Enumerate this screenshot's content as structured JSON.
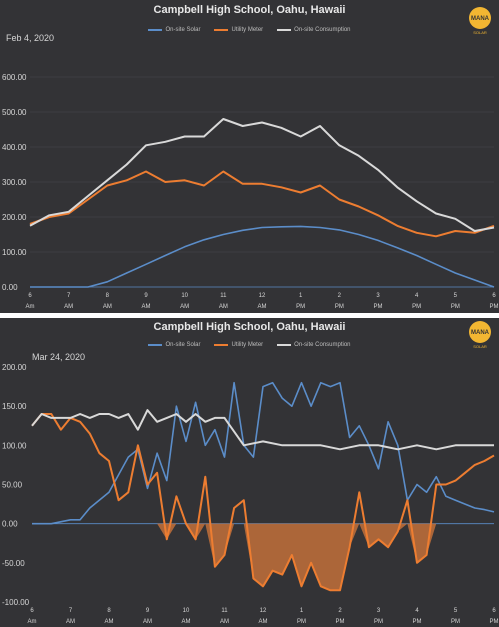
{
  "colors": {
    "background": "#333336",
    "solar": "#5b8dc9",
    "meter": "#ed7d31",
    "consumption": "#d9d9d9",
    "fill": "#c2703a",
    "grid": "#4a4a4d",
    "text": "#d6d6d6",
    "logo": "#f2b632"
  },
  "charts": [
    {
      "title": "Campbell High School, Oahu, Hawaii",
      "date_label": "Feb 4, 2020",
      "legend": [
        "On-site Solar",
        "Utility Meter",
        "On-site Consumption"
      ],
      "logo_text": "MANA",
      "logo_subtext": "SOLAR"
    },
    {
      "title": "Campbell High School, Oahu, Hawaii",
      "date_label": "Mar 24, 2020",
      "legend": [
        "On-site Solar",
        "Utility Meter",
        "On-site Consumption"
      ],
      "logo_text": "MANA",
      "logo_subtext": "SOLAR"
    }
  ],
  "chart_data": [
    {
      "type": "line",
      "title": "Campbell High School, Oahu, Hawaii",
      "legend_position": "top",
      "ylim": [
        0,
        600
      ],
      "xlim": [
        6,
        18
      ],
      "y_ticks": [
        0,
        100,
        200,
        300,
        400,
        500,
        600
      ],
      "y_tick_labels": [
        "0.00",
        "100.00",
        "200.00",
        "300.00",
        "400.00",
        "500.00",
        "600.00"
      ],
      "x_ticks": [
        6,
        7,
        8,
        9,
        10,
        11,
        12,
        13,
        14,
        15,
        16,
        17,
        18
      ],
      "x_tick_labels": [
        [
          "6",
          "Am"
        ],
        [
          "7",
          "AM"
        ],
        [
          "8",
          "AM"
        ],
        [
          "9",
          "AM"
        ],
        [
          "10",
          "AM"
        ],
        [
          "11",
          "AM"
        ],
        [
          "12",
          "AM"
        ],
        [
          "1",
          "PM"
        ],
        [
          "2",
          "PM"
        ],
        [
          "3",
          "PM"
        ],
        [
          "4",
          "PM"
        ],
        [
          "5",
          "PM"
        ],
        [
          "6",
          "PM"
        ]
      ],
      "grid": true,
      "fill_negative": false,
      "series": [
        {
          "name": "On-site Solar",
          "x": [
            6,
            7,
            7.5,
            8,
            8.5,
            9,
            9.5,
            10,
            10.5,
            11,
            11.5,
            12,
            12.5,
            13,
            13.5,
            14,
            14.5,
            15,
            15.5,
            16,
            16.5,
            17,
            17.5,
            18
          ],
          "y": [
            0,
            0,
            0,
            15,
            40,
            65,
            90,
            115,
            135,
            150,
            162,
            170,
            172,
            173,
            170,
            163,
            150,
            133,
            112,
            90,
            65,
            40,
            20,
            0
          ]
        },
        {
          "name": "Utility Meter",
          "x": [
            6,
            6.5,
            7,
            7.5,
            8,
            8.5,
            9,
            9.5,
            10,
            10.5,
            11,
            11.5,
            12,
            12.5,
            13,
            13.5,
            14,
            14.5,
            15,
            15.5,
            16,
            16.5,
            17,
            17.5,
            18
          ],
          "y": [
            180,
            200,
            210,
            250,
            290,
            305,
            330,
            300,
            305,
            290,
            330,
            295,
            295,
            285,
            270,
            290,
            250,
            230,
            205,
            175,
            155,
            145,
            160,
            155,
            175
          ]
        },
        {
          "name": "On-site Consumption",
          "x": [
            6,
            6.5,
            7,
            7.5,
            8,
            8.5,
            9,
            9.5,
            10,
            10.5,
            11,
            11.5,
            12,
            12.5,
            13,
            13.5,
            14,
            14.5,
            15,
            15.5,
            16,
            16.5,
            17,
            17.5,
            18
          ],
          "y": [
            175,
            205,
            215,
            260,
            305,
            350,
            405,
            415,
            430,
            430,
            480,
            460,
            470,
            455,
            430,
            460,
            405,
            375,
            335,
            285,
            245,
            210,
            195,
            160,
            170
          ]
        }
      ]
    },
    {
      "type": "line",
      "title": "Campbell High School, Oahu, Hawaii",
      "legend_position": "top",
      "ylim": [
        -100,
        200
      ],
      "xlim": [
        6,
        18
      ],
      "y_ticks": [
        -100,
        -50,
        0,
        50,
        100,
        150,
        200
      ],
      "y_tick_labels": [
        "-100.00",
        "-50.00",
        "0.00",
        "50.00",
        "100.00",
        "150.00",
        "200.00"
      ],
      "x_ticks": [
        6,
        7,
        8,
        9,
        10,
        11,
        12,
        13,
        14,
        15,
        16,
        17,
        18
      ],
      "x_tick_labels": [
        [
          "6",
          "Am"
        ],
        [
          "7",
          "AM"
        ],
        [
          "8",
          "AM"
        ],
        [
          "9",
          "AM"
        ],
        [
          "10",
          "AM"
        ],
        [
          "11",
          "AM"
        ],
        [
          "12",
          "AM"
        ],
        [
          "1",
          "PM"
        ],
        [
          "2",
          "PM"
        ],
        [
          "3",
          "PM"
        ],
        [
          "4",
          "PM"
        ],
        [
          "5",
          "PM"
        ],
        [
          "6",
          "PM"
        ]
      ],
      "grid": false,
      "fill_negative": true,
      "series": [
        {
          "name": "On-site Solar",
          "x": [
            6,
            6.5,
            7,
            7.25,
            7.5,
            8,
            8.5,
            8.75,
            9,
            9.25,
            9.5,
            9.75,
            10,
            10.25,
            10.5,
            10.75,
            11,
            11.25,
            11.5,
            11.75,
            12,
            12.25,
            12.5,
            12.75,
            13,
            13.25,
            13.5,
            13.75,
            14,
            14.25,
            14.5,
            14.75,
            15,
            15.25,
            15.5,
            15.75,
            16,
            16.25,
            16.5,
            16.75,
            17,
            17.25,
            17.5,
            17.75,
            18
          ],
          "y": [
            0,
            0,
            5,
            5,
            20,
            40,
            85,
            95,
            45,
            90,
            55,
            150,
            105,
            155,
            100,
            120,
            85,
            180,
            100,
            85,
            175,
            180,
            160,
            150,
            180,
            150,
            180,
            175,
            180,
            110,
            125,
            100,
            70,
            130,
            100,
            30,
            50,
            40,
            60,
            35,
            30,
            25,
            20,
            18,
            15
          ]
        },
        {
          "name": "Utility Meter",
          "x": [
            6,
            6.25,
            6.5,
            6.75,
            7,
            7.25,
            7.5,
            7.75,
            8,
            8.25,
            8.5,
            8.75,
            9,
            9.25,
            9.5,
            9.75,
            10,
            10.25,
            10.5,
            10.75,
            11,
            11.25,
            11.5,
            11.75,
            12,
            12.25,
            12.5,
            12.75,
            13,
            13.25,
            13.5,
            13.75,
            14,
            14.25,
            14.5,
            14.75,
            15,
            15.25,
            15.5,
            15.75,
            16,
            16.25,
            16.5,
            16.75,
            17,
            17.25,
            17.5,
            17.75,
            18
          ],
          "y": [
            125,
            140,
            140,
            120,
            135,
            130,
            115,
            90,
            80,
            30,
            40,
            100,
            50,
            65,
            -20,
            35,
            0,
            -20,
            60,
            -55,
            -40,
            20,
            30,
            -70,
            -80,
            -60,
            -65,
            -40,
            -80,
            -50,
            -80,
            -85,
            -85,
            -30,
            40,
            -30,
            -20,
            -30,
            -10,
            30,
            -50,
            -40,
            50,
            50,
            55,
            65,
            75,
            80,
            87
          ]
        },
        {
          "name": "On-site Consumption",
          "x": [
            6,
            6.25,
            6.5,
            6.75,
            7,
            7.25,
            7.5,
            7.75,
            8,
            8.25,
            8.5,
            8.75,
            9,
            9.25,
            9.5,
            9.75,
            10,
            10.25,
            10.5,
            10.75,
            11,
            11.5,
            12,
            12.5,
            13,
            13.5,
            14,
            14.5,
            15,
            15.5,
            16,
            16.5,
            17,
            17.5,
            18
          ],
          "y": [
            125,
            140,
            135,
            135,
            135,
            140,
            135,
            140,
            140,
            135,
            140,
            120,
            145,
            130,
            135,
            140,
            130,
            140,
            130,
            135,
            135,
            100,
            105,
            100,
            100,
            100,
            95,
            100,
            100,
            95,
            100,
            95,
            100,
            100,
            100
          ]
        }
      ]
    }
  ]
}
